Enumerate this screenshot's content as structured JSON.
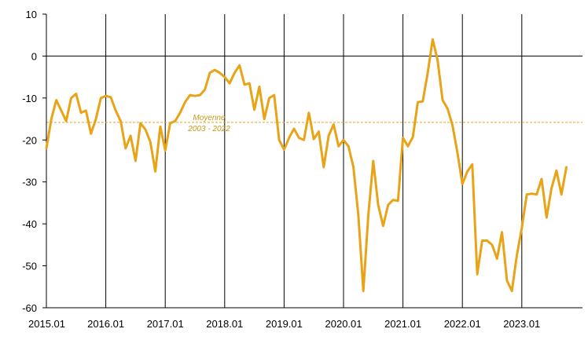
{
  "chart_data": {
    "type": "line",
    "title": "",
    "xlabel": "",
    "ylabel": "",
    "ylim": [
      -60,
      10
    ],
    "y_ticks": [
      10,
      0,
      -10,
      -20,
      -30,
      -40,
      -50,
      -60
    ],
    "x_tick_labels": [
      "2015.01",
      "2016.01",
      "2017.01",
      "2018.01",
      "2019.01",
      "2020.01",
      "2021.01",
      "2022.01",
      "2023.01"
    ],
    "grid": "vertical lines at each year start",
    "colors": {
      "series": "#e8a317",
      "average": "#e8a317",
      "axes": "#000000"
    },
    "average_line": {
      "value": -15.8,
      "label_line1": "Moyenne",
      "label_line2": "2003 - 2022"
    },
    "series": [
      {
        "values": [
          -22,
          -15,
          -10.5,
          -13,
          -15.5,
          -10,
          -9,
          -13.5,
          -13,
          -18.5,
          -15,
          -10,
          -9.5,
          -9.8,
          -13,
          -15.5,
          -22,
          -19,
          -25,
          -16,
          -17.5,
          -20.5,
          -27.5,
          -16.8,
          -22.5,
          -16,
          -15.5,
          -13.5,
          -11,
          -9.3,
          -9.5,
          -9.3,
          -8,
          -4,
          -3.3,
          -4,
          -5,
          -6.5,
          -4,
          -2.2,
          -6.8,
          -6.5,
          -12.8,
          -7.3,
          -15,
          -10,
          -9.3,
          -20,
          -22.3,
          -19.5,
          -17.3,
          -19.5,
          -20,
          -13.5,
          -19.8,
          -18,
          -26.5,
          -19,
          -16.3,
          -21.5,
          -20,
          -21.5,
          -26.5,
          -38,
          -56,
          -38,
          -25,
          -35.5,
          -40.5,
          -35.5,
          -34.3,
          -34.5,
          -19.5,
          -21.5,
          -19.3,
          -11,
          -10.8,
          -4,
          4,
          -1,
          -10.5,
          -12.5,
          -16.5,
          -23,
          -30.5,
          -27.5,
          -25.8,
          -52,
          -44,
          -44,
          -45,
          -48.3,
          -42,
          -53.5,
          -56,
          -47.5,
          -41,
          -33,
          -32.8,
          -33,
          -29.3,
          -38.5,
          -31.5,
          -27.3,
          -33,
          -26.5
        ]
      }
    ]
  }
}
